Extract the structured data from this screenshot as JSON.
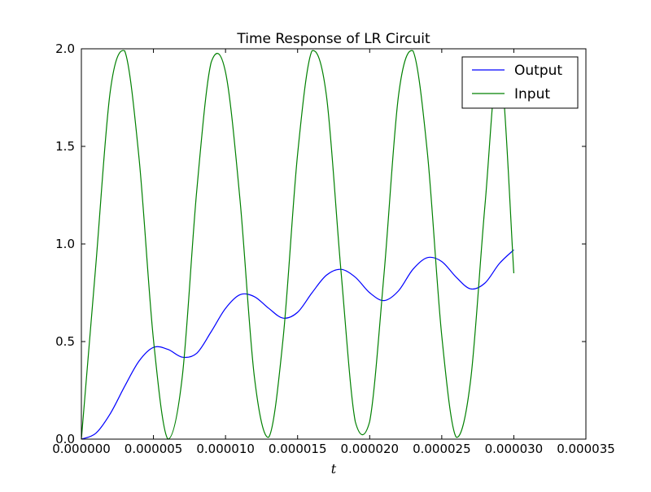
{
  "chart_data": {
    "type": "line",
    "title": "Time Response of LR Circuit",
    "xlabel": "t",
    "ylabel": "",
    "xlim": [
      0,
      3.5e-05
    ],
    "ylim": [
      0,
      2.0
    ],
    "xticks": [
      0,
      5e-06,
      1e-05,
      1.5e-05,
      2e-05,
      2.5e-05,
      3e-05,
      3.5e-05
    ],
    "xtick_labels": [
      "0.000000",
      "0.000005",
      "0.000010",
      "0.000015",
      "0.000020",
      "0.000025",
      "0.000030",
      "0.000035"
    ],
    "yticks": [
      0,
      0.5,
      1.0,
      1.5,
      2.0
    ],
    "ytick_labels": [
      "0.0",
      "0.5",
      "1.0",
      "1.5",
      "2.0"
    ],
    "grid": false,
    "legend_position": "top-right",
    "x": [
      0,
      1e-06,
      2e-06,
      3e-06,
      4e-06,
      5e-06,
      6e-06,
      7e-06,
      8e-06,
      9e-06,
      1e-05,
      1.1e-05,
      1.2e-05,
      1.3e-05,
      1.4e-05,
      1.5e-05,
      1.6e-05,
      1.7e-05,
      1.8e-05,
      1.9e-05,
      2e-05,
      2.1e-05,
      2.2e-05,
      2.3e-05,
      2.4e-05,
      2.5e-05,
      2.6e-05,
      2.7e-05,
      2.8e-05,
      2.9e-05,
      3e-05
    ],
    "series": [
      {
        "name": "Output",
        "color": "#0000ff",
        "values": [
          0,
          0.03,
          0.13,
          0.27,
          0.4,
          0.47,
          0.46,
          0.42,
          0.44,
          0.55,
          0.67,
          0.74,
          0.73,
          0.67,
          0.62,
          0.65,
          0.75,
          0.84,
          0.87,
          0.83,
          0.75,
          0.71,
          0.76,
          0.87,
          0.93,
          0.91,
          0.83,
          0.77,
          0.8,
          0.9,
          0.97
        ]
      },
      {
        "name": "Input",
        "color": "#008000",
        "values": [
          0,
          0.89,
          1.78,
          1.99,
          1.44,
          0.51,
          0.0,
          0.32,
          1.27,
          1.93,
          1.88,
          1.23,
          0.32,
          0.01,
          0.52,
          1.46,
          1.99,
          1.76,
          0.87,
          0.09,
          0.09,
          0.85,
          1.76,
          1.99,
          1.47,
          0.53,
          0.01,
          0.3,
          1.2,
          1.95,
          0.85
        ]
      }
    ]
  }
}
